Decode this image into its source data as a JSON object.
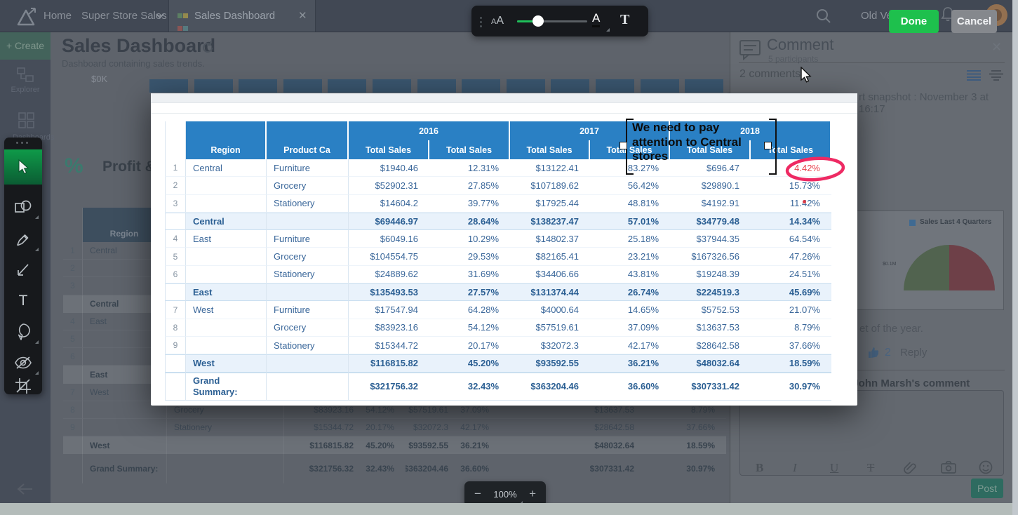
{
  "topbar": {
    "home": "Home",
    "workspace": "Super Store Sales",
    "tab": "Sales Dashboard",
    "old_version": "Old Version",
    "done": "Done",
    "cancel": "Cancel"
  },
  "sidebar": {
    "create": "Create",
    "explorer": "Explorer",
    "dashboards": "Dashboards"
  },
  "format_toolbar": {
    "font_size_icon": "AA",
    "color_letter": "A",
    "text_tool_icon": "T"
  },
  "background": {
    "title": "Sales Dashboard",
    "subtitle": "Dashboard containing sales trends.",
    "y_axis_label": "$0K",
    "bars_count": 13,
    "percent_icon": "%",
    "widget_title": "Profit &"
  },
  "table": {
    "years": [
      "2016",
      "2017",
      "2018"
    ],
    "region_header": "Region",
    "product_header": "Product Ca",
    "value_header": "Total Sales",
    "rows": [
      {
        "n": "1",
        "region": "Central",
        "product": "Furniture",
        "type": "data",
        "circled": true,
        "v": [
          "$1940.46",
          "12.31%",
          "$13122.41",
          "83.27%",
          "$696.47",
          "4.42%"
        ]
      },
      {
        "n": "2",
        "region": "",
        "product": "Grocery",
        "type": "data",
        "v": [
          "$52902.31",
          "27.85%",
          "$107189.62",
          "56.42%",
          "$29890.1",
          "15.73%"
        ]
      },
      {
        "n": "3",
        "region": "",
        "product": "Stationery",
        "type": "data",
        "v": [
          "$14604.2",
          "39.77%",
          "$17925.44",
          "48.81%",
          "$4192.91",
          "11.42%"
        ]
      },
      {
        "n": "",
        "region": "Central",
        "product": "",
        "type": "summary",
        "v": [
          "$69446.97",
          "28.64%",
          "$138237.47",
          "57.01%",
          "$34779.48",
          "14.34%"
        ]
      },
      {
        "n": "4",
        "region": "East",
        "product": "Furniture",
        "type": "data",
        "v": [
          "$6049.16",
          "10.29%",
          "$14802.37",
          "25.18%",
          "$37944.35",
          "64.54%"
        ]
      },
      {
        "n": "5",
        "region": "",
        "product": "Grocery",
        "type": "data",
        "v": [
          "$104554.75",
          "29.53%",
          "$82165.41",
          "23.21%",
          "$167326.56",
          "47.26%"
        ]
      },
      {
        "n": "6",
        "region": "",
        "product": "Stationery",
        "type": "data",
        "v": [
          "$24889.62",
          "31.69%",
          "$34406.66",
          "43.81%",
          "$19248.39",
          "24.51%"
        ]
      },
      {
        "n": "",
        "region": "East",
        "product": "",
        "type": "summary",
        "v": [
          "$135493.53",
          "27.57%",
          "$131374.44",
          "26.74%",
          "$224519.3",
          "45.69%"
        ]
      },
      {
        "n": "7",
        "region": "West",
        "product": "Furniture",
        "type": "data",
        "v": [
          "$17547.94",
          "64.28%",
          "$4000.64",
          "14.65%",
          "$5752.53",
          "21.07%"
        ]
      },
      {
        "n": "8",
        "region": "",
        "product": "Grocery",
        "type": "data",
        "v": [
          "$83923.16",
          "54.12%",
          "$57519.61",
          "37.09%",
          "$13637.53",
          "8.79%"
        ]
      },
      {
        "n": "9",
        "region": "",
        "product": "Stationery",
        "type": "data",
        "v": [
          "$15344.72",
          "20.17%",
          "$32072.3",
          "42.17%",
          "$28642.58",
          "37.66%"
        ]
      },
      {
        "n": "",
        "region": "West",
        "product": "",
        "type": "summary",
        "v": [
          "$116815.82",
          "45.20%",
          "$93592.55",
          "36.21%",
          "$48032.64",
          "18.59%"
        ]
      },
      {
        "n": "",
        "region": "Grand Summary:",
        "product": "",
        "type": "grand",
        "v": [
          "$321756.32",
          "32.43%",
          "$363204.46",
          "36.60%",
          "$307331.42",
          "30.97%"
        ]
      }
    ]
  },
  "annotation": {
    "note": "We need to pay attention to Central stores",
    "circled_value": "4.42%",
    "highlight_color": "#ee2a63"
  },
  "comments": {
    "title": "Comment",
    "participants": "5 participants",
    "count": "2 comments",
    "snapshot": "rt snapshot : November 3 at 16:17",
    "thumb_title": "Sales Last 4 Quarters",
    "gauge_label": "$0.1M",
    "body_fragment": "et of the year.",
    "like_count": "2",
    "reply": "Reply",
    "context": "to John Marsh's comment",
    "post": "Post",
    "bold": "B",
    "italic": "I",
    "underline": "U",
    "strike": "T"
  },
  "zoom_control": {
    "minus": "−",
    "level": "100%",
    "plus": "+"
  }
}
